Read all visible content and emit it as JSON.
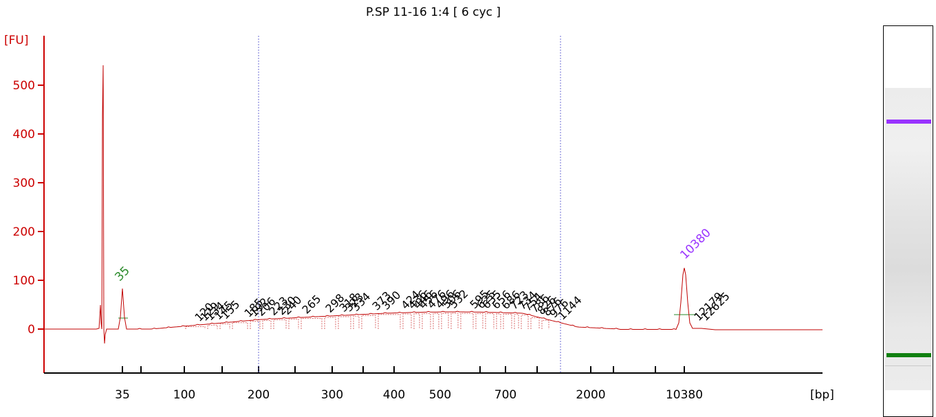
{
  "title": "P.SP 11-16 1:4  [ 6 cyc ]",
  "chart_data": {
    "type": "line",
    "title": "P.SP 11-16 1:4  [ 6 cyc ]",
    "y_unit": "[FU]",
    "x_unit": "[bp]",
    "y_range": [
      -90,
      600
    ],
    "y_ticks": [
      0,
      100,
      200,
      300,
      400,
      500
    ],
    "x_tick_labels": [
      "35",
      "100",
      "200",
      "300",
      "400",
      "500",
      "700",
      "2000",
      "10380"
    ],
    "grid": false,
    "series_color": "#c00000",
    "axis_color": "#cc0000",
    "peaks": [
      {
        "label": "35",
        "value": 80,
        "color": "#2a8a2a"
      },
      {
        "label": "10380",
        "value": 128,
        "color": "#9933ff"
      }
    ],
    "marker_color": "#000000",
    "fragment_labels": [
      "120",
      "129",
      "134",
      "145",
      "155",
      "185",
      "192",
      "206",
      "223",
      "230",
      "240",
      "265",
      "298",
      "318",
      "323",
      "334",
      "373",
      "390",
      "424",
      "436",
      "446",
      "456",
      "476",
      "496",
      "506",
      "532",
      "595",
      "625",
      "635",
      "656",
      "686",
      "723",
      "734",
      "754",
      "786",
      "826",
      "876",
      "976",
      "1144",
      "12179",
      "12625"
    ],
    "region_line_color": "#6b6bd6",
    "gel": {
      "bands": [
        {
          "name": "upper-marker",
          "color": "#9933ff"
        },
        {
          "name": "lower-marker",
          "color": "#108010"
        }
      ]
    }
  }
}
